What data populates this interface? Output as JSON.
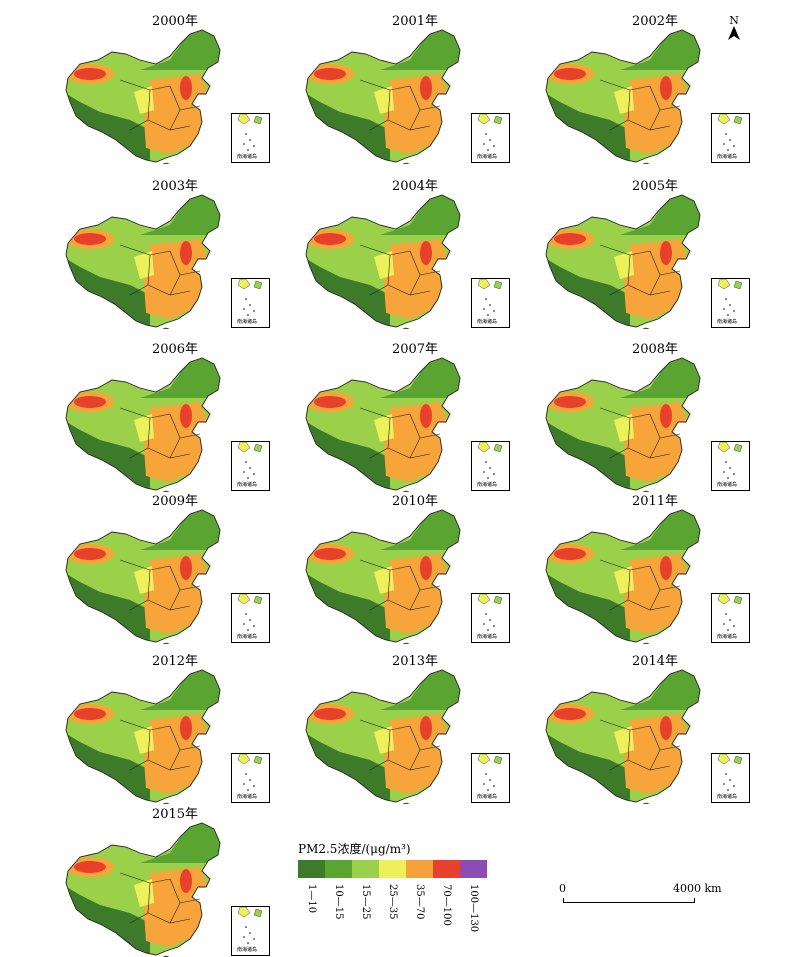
{
  "panels": [
    {
      "year": "2000年",
      "hot": "#f7a43a",
      "core": "#e8412b"
    },
    {
      "year": "2001年",
      "hot": "#f7a43a",
      "core": "#e8412b"
    },
    {
      "year": "2002年",
      "hot": "#f7a43a",
      "core": "#e8412b"
    },
    {
      "year": "2003年",
      "hot": "#f7a43a",
      "core": "#e8412b"
    },
    {
      "year": "2004年",
      "hot": "#f7a43a",
      "core": "#e8412b"
    },
    {
      "year": "2005年",
      "hot": "#f7a43a",
      "core": "#e8412b"
    },
    {
      "year": "2006年",
      "hot": "#f7a43a",
      "core": "#e8412b"
    },
    {
      "year": "2007年",
      "hot": "#f7a43a",
      "core": "#e8412b"
    },
    {
      "year": "2008年",
      "hot": "#f7a43a",
      "core": "#e8412b"
    },
    {
      "year": "2009年",
      "hot": "#f7a43a",
      "core": "#e8412b"
    },
    {
      "year": "2010年",
      "hot": "#f7a43a",
      "core": "#e8412b"
    },
    {
      "year": "2011年",
      "hot": "#f7a43a",
      "core": "#e8412b"
    },
    {
      "year": "2012年",
      "hot": "#f7a43a",
      "core": "#e8412b"
    },
    {
      "year": "2013年",
      "hot": "#f7a43a",
      "core": "#e8412b"
    },
    {
      "year": "2014年",
      "hot": "#f7a43a",
      "core": "#e8412b"
    },
    {
      "year": "2015年",
      "hot": "#f7a43a",
      "core": "#e8412b"
    }
  ],
  "inset_label": "南海诸岛",
  "north_label": "N",
  "legend": {
    "title": "PM2.5浓度/(μg/m³)",
    "classes": [
      {
        "label": "1—10",
        "color": "#3d7a2a"
      },
      {
        "label": "10—15",
        "color": "#5aa532"
      },
      {
        "label": "15—25",
        "color": "#9bd14a"
      },
      {
        "label": "25—35",
        "color": "#eef05a"
      },
      {
        "label": "35—70",
        "color": "#f5a23a"
      },
      {
        "label": "70—100",
        "color": "#e8412b"
      },
      {
        "label": "100—130",
        "color": "#8c4cb4"
      }
    ]
  },
  "scale_bar": {
    "start": "0",
    "end": "4000 km"
  }
}
